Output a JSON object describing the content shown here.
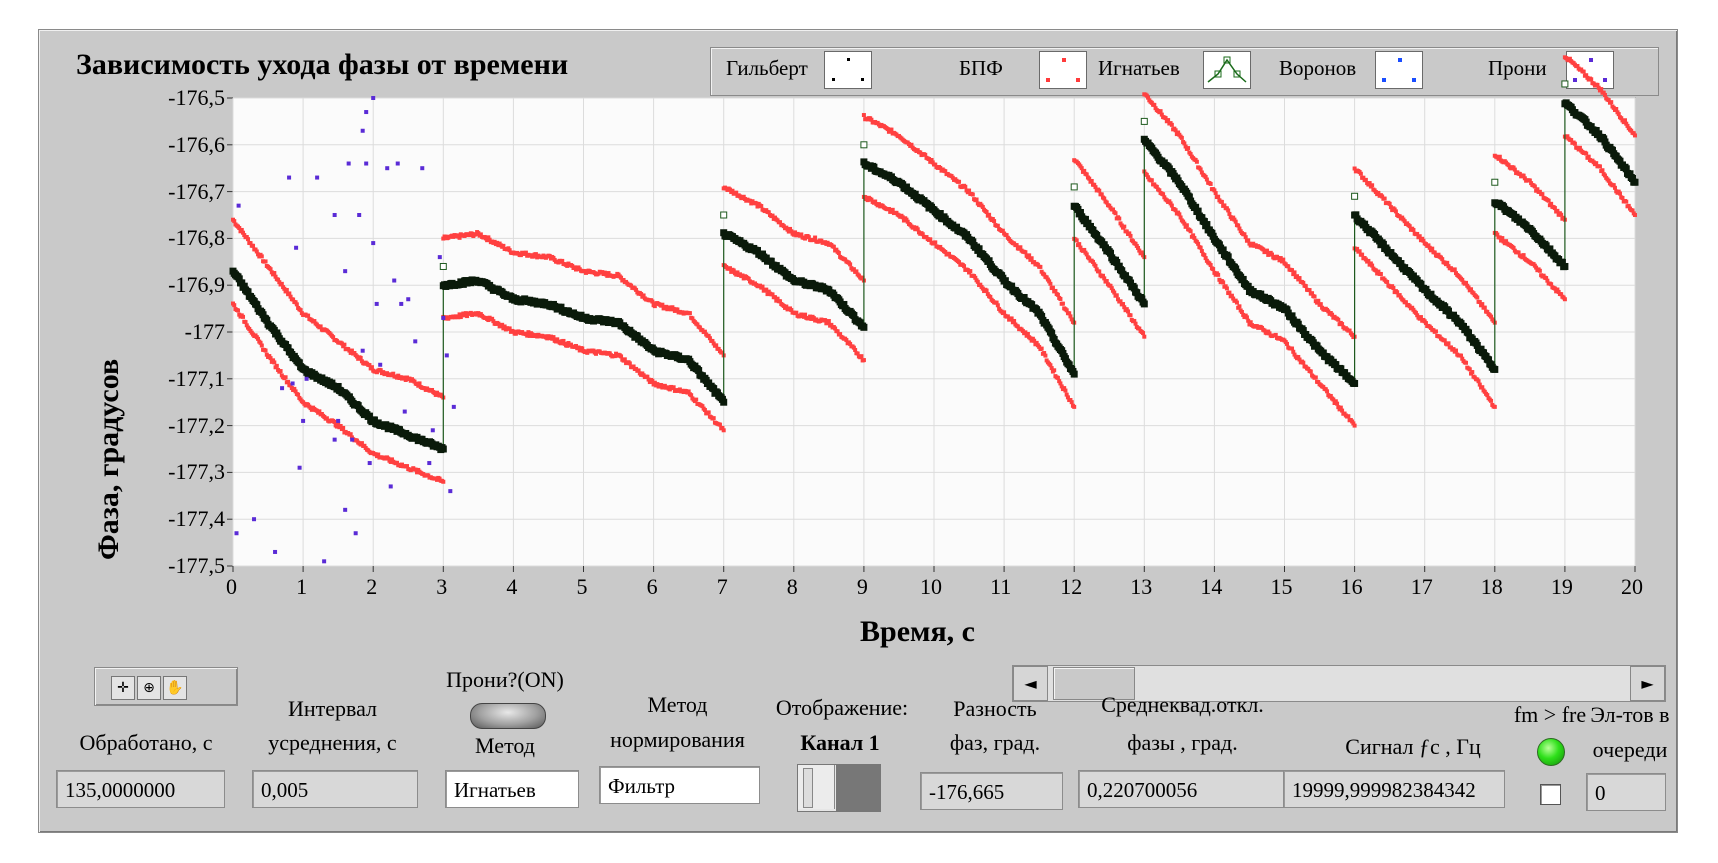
{
  "window": {
    "graph_title": "Зависимость ухода фазы от времени"
  },
  "legend": {
    "items": [
      {
        "label": "Гильберт",
        "icon": "black-dots-icon",
        "color": "#000000"
      },
      {
        "label": "БПФ",
        "icon": "red-dots-icon",
        "color": "#ff3b3b"
      },
      {
        "label": "Игнатьев",
        "icon": "green-line-markers-icon",
        "color": "#1a6b1a"
      },
      {
        "label": "Воронов",
        "icon": "blue-dots-icon",
        "color": "#1a4dff"
      },
      {
        "label": "Прони",
        "icon": "purple-dots-icon",
        "color": "#5a2bd6"
      }
    ]
  },
  "chart_data": {
    "type": "scatter",
    "title": "Зависимость ухода фазы от времени",
    "xlabel": "Время, с",
    "ylabel": "Фаза, градусов",
    "xlim": [
      0,
      20
    ],
    "ylim": [
      -177.5,
      -176.5
    ],
    "x_ticks": [
      "0",
      "1",
      "2",
      "3",
      "4",
      "5",
      "6",
      "7",
      "8",
      "9",
      "10",
      "11",
      "12",
      "13",
      "14",
      "15",
      "16",
      "17",
      "18",
      "19",
      "20"
    ],
    "y_ticks": [
      "-176,5",
      "-176,6",
      "-176,7",
      "-176,8",
      "-176,9",
      "-177",
      "-177,1",
      "-177,2",
      "-177,3",
      "-177,4",
      "-177,5"
    ],
    "grid": true,
    "series": [
      {
        "name": "Игнатьев",
        "color": "#1e5a1e",
        "segments": [
          {
            "x": [
              0,
              0.5,
              1,
              1.5,
              2,
              2.5,
              3
            ],
            "y": [
              -176.87,
              -176.98,
              -177.08,
              -177.12,
              -177.19,
              -177.22,
              -177.25
            ]
          },
          {
            "x": [
              3,
              3.5,
              4,
              4.5,
              5,
              5.5,
              6,
              6.5,
              7
            ],
            "y": [
              -176.9,
              -176.89,
              -176.93,
              -176.94,
              -176.97,
              -176.98,
              -177.04,
              -177.06,
              -177.15
            ]
          },
          {
            "x": [
              7,
              7.5,
              8,
              8.5,
              9
            ],
            "y": [
              -176.79,
              -176.83,
              -176.89,
              -176.91,
              -176.99
            ]
          },
          {
            "x": [
              9,
              9.5,
              10,
              10.5,
              11,
              11.5,
              12
            ],
            "y": [
              -176.64,
              -176.68,
              -176.74,
              -176.8,
              -176.89,
              -176.96,
              -177.09
            ]
          },
          {
            "x": [
              12,
              12.5,
              13
            ],
            "y": [
              -176.73,
              -176.83,
              -176.94
            ]
          },
          {
            "x": [
              13,
              13.5,
              14,
              14.5,
              15,
              15.5,
              16
            ],
            "y": [
              -176.59,
              -176.68,
              -176.8,
              -176.91,
              -176.95,
              -177.04,
              -177.11
            ]
          },
          {
            "x": [
              16,
              16.5,
              17,
              17.5,
              18
            ],
            "y": [
              -176.75,
              -176.83,
              -176.91,
              -176.98,
              -177.08
            ]
          },
          {
            "x": [
              18,
              18.5,
              19
            ],
            "y": [
              -176.72,
              -176.78,
              -176.86
            ]
          },
          {
            "x": [
              19,
              19.5,
              20
            ],
            "y": [
              -176.51,
              -176.58,
              -176.68
            ]
          }
        ]
      },
      {
        "name": "БПФ",
        "color": "#ff4040",
        "segments": [
          {
            "x": [
              0,
              0.5,
              1,
              1.5,
              2,
              2.5,
              3
            ],
            "y": [
              -176.76,
              -176.86,
              -176.96,
              -177.02,
              -177.08,
              -177.1,
              -177.14
            ]
          },
          {
            "x": [
              3,
              3.5,
              4,
              4.5,
              5,
              5.5,
              6,
              6.5,
              7
            ],
            "y": [
              -176.8,
              -176.79,
              -176.83,
              -176.84,
              -176.87,
              -176.88,
              -176.94,
              -176.96,
              -177.05
            ]
          },
          {
            "x": [
              7,
              7.5,
              8,
              8.5,
              9
            ],
            "y": [
              -176.69,
              -176.73,
              -176.79,
              -176.81,
              -176.89
            ]
          },
          {
            "x": [
              9,
              9.5,
              10,
              10.5,
              11,
              11.5,
              12
            ],
            "y": [
              -176.54,
              -176.58,
              -176.64,
              -176.7,
              -176.79,
              -176.86,
              -176.98
            ]
          },
          {
            "x": [
              12,
              12.5,
              13
            ],
            "y": [
              -176.63,
              -176.73,
              -176.84
            ]
          },
          {
            "x": [
              13,
              13.5,
              14,
              14.5,
              15,
              15.5,
              16
            ],
            "y": [
              -176.49,
              -176.58,
              -176.7,
              -176.81,
              -176.85,
              -176.94,
              -177.01
            ]
          },
          {
            "x": [
              16,
              16.5,
              17,
              17.5,
              18
            ],
            "y": [
              -176.65,
              -176.73,
              -176.81,
              -176.88,
              -176.98
            ]
          },
          {
            "x": [
              18,
              18.5,
              19
            ],
            "y": [
              -176.62,
              -176.68,
              -176.76
            ]
          },
          {
            "x": [
              19,
              19.5,
              20
            ],
            "y": [
              -176.41,
              -176.48,
              -176.58
            ]
          }
        ]
      },
      {
        "name": "БПФ",
        "color": "#ff4040",
        "segments": [
          {
            "x": [
              0,
              0.5,
              1,
              1.5,
              2,
              2.5,
              3
            ],
            "y": [
              -176.94,
              -177.05,
              -177.15,
              -177.2,
              -177.26,
              -177.29,
              -177.32
            ]
          },
          {
            "x": [
              3,
              3.5,
              4,
              4.5,
              5,
              5.5,
              6,
              6.5,
              7
            ],
            "y": [
              -176.97,
              -176.96,
              -177.0,
              -177.01,
              -177.04,
              -177.05,
              -177.11,
              -177.13,
              -177.21
            ]
          },
          {
            "x": [
              7,
              7.5,
              8,
              8.5,
              9
            ],
            "y": [
              -176.86,
              -176.9,
              -176.96,
              -176.98,
              -177.06
            ]
          },
          {
            "x": [
              9,
              9.5,
              10,
              10.5,
              11,
              11.5,
              12
            ],
            "y": [
              -176.71,
              -176.75,
              -176.81,
              -176.87,
              -176.96,
              -177.03,
              -177.16
            ]
          },
          {
            "x": [
              12,
              12.5,
              13
            ],
            "y": [
              -176.8,
              -176.9,
              -177.01
            ]
          },
          {
            "x": [
              13,
              13.5,
              14,
              14.5,
              15,
              15.5,
              16
            ],
            "y": [
              -176.66,
              -176.75,
              -176.87,
              -176.98,
              -177.02,
              -177.11,
              -177.2
            ]
          },
          {
            "x": [
              16,
              16.5,
              17,
              17.5,
              18
            ],
            "y": [
              -176.82,
              -176.9,
              -176.98,
              -177.05,
              -177.16
            ]
          },
          {
            "x": [
              18,
              18.5,
              19
            ],
            "y": [
              -176.79,
              -176.85,
              -176.93
            ]
          },
          {
            "x": [
              19,
              19.5,
              20
            ],
            "y": [
              -176.58,
              -176.65,
              -176.75
            ]
          }
        ]
      },
      {
        "name": "Прони",
        "color": "#5a2bd6",
        "points": [
          [
            0.05,
            -177.43
          ],
          [
            0.08,
            -176.73
          ],
          [
            0.3,
            -177.4
          ],
          [
            0.6,
            -177.47
          ],
          [
            0.7,
            -177.12
          ],
          [
            0.8,
            -176.67
          ],
          [
            0.85,
            -177.11
          ],
          [
            0.9,
            -176.82
          ],
          [
            0.95,
            -177.29
          ],
          [
            1.0,
            -177.19
          ],
          [
            1.05,
            -177.1
          ],
          [
            1.2,
            -176.67
          ],
          [
            1.3,
            -177.49
          ],
          [
            1.45,
            -177.23
          ],
          [
            1.45,
            -176.75
          ],
          [
            1.5,
            -177.19
          ],
          [
            1.6,
            -177.38
          ],
          [
            1.6,
            -176.87
          ],
          [
            1.65,
            -176.64
          ],
          [
            1.7,
            -177.23
          ],
          [
            1.75,
            -177.43
          ],
          [
            1.8,
            -176.75
          ],
          [
            1.85,
            -176.57
          ],
          [
            1.85,
            -177.04
          ],
          [
            1.9,
            -176.64
          ],
          [
            1.95,
            -177.28
          ],
          [
            2.0,
            -176.81
          ],
          [
            2.05,
            -176.94
          ],
          [
            2.1,
            -177.07
          ],
          [
            2.2,
            -176.65
          ],
          [
            2.25,
            -177.33
          ],
          [
            2.3,
            -176.89
          ],
          [
            2.35,
            -176.64
          ],
          [
            2.4,
            -176.94
          ],
          [
            2.45,
            -177.17
          ],
          [
            2.5,
            -176.93
          ],
          [
            2.6,
            -177.02
          ],
          [
            2.7,
            -176.65
          ],
          [
            2.8,
            -177.28
          ],
          [
            2.85,
            -177.21
          ],
          [
            2.95,
            -176.84
          ],
          [
            3.0,
            -176.97
          ],
          [
            3.05,
            -177.05
          ],
          [
            3.1,
            -177.34
          ],
          [
            3.15,
            -177.16
          ],
          [
            2.0,
            -176.5
          ],
          [
            1.9,
            -176.53
          ]
        ]
      }
    ]
  },
  "toolbar": {
    "tools": [
      {
        "name": "cursor-tool-icon",
        "glyph": "✛"
      },
      {
        "name": "zoom-tool-icon",
        "glyph": "⊕"
      },
      {
        "name": "pan-tool-icon",
        "glyph": "✋"
      }
    ]
  },
  "scrollbar": {
    "left_arrow": "◄",
    "right_arrow": "►"
  },
  "controls": {
    "processed": {
      "label": "Обработано, с",
      "value": "135,0000000"
    },
    "interval": {
      "label_line1": "Интервал",
      "label_line2": "усреднения, с",
      "value": "0,005"
    },
    "prony": {
      "label": "Прони?(ON)"
    },
    "method": {
      "label": "Метод",
      "value": "Игнатьев"
    },
    "norm_method": {
      "label_line1": "Метод",
      "label_line2": "нормирования",
      "value": "Фильтр"
    },
    "display": {
      "label": "Отображение:",
      "value": "Канал 1"
    },
    "phase_diff": {
      "label_line1": "Разность",
      "label_line2": "фаз, град.",
      "value": "-176,665"
    },
    "rms_dev": {
      "label_line1": "Среднеквад.откл.",
      "label_line2": "фазы , град.",
      "value": "0,220700056"
    },
    "signal": {
      "label": "Сигнал ƒc , Гц",
      "value": "19999,999982384342"
    },
    "fm_fre": {
      "label": "fm > fre",
      "led_color": "#2ee01a"
    },
    "queue": {
      "label_line1": "Эл-тов в",
      "label_line2": "очереди",
      "value": "0"
    }
  }
}
